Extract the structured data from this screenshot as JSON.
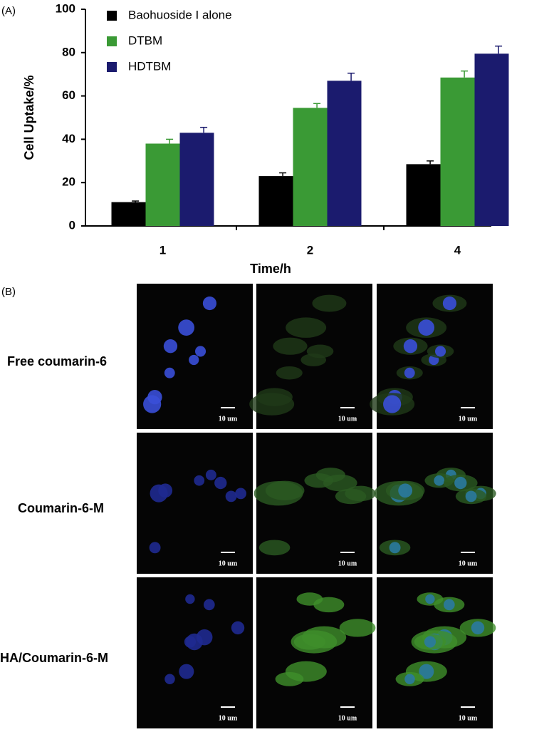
{
  "chart_data": {
    "type": "bar",
    "panel_label": "(A)",
    "x_label": "Time/h",
    "y_label": "Cell Uptake/%",
    "categories": [
      "1",
      "2",
      "4"
    ],
    "series": [
      {
        "name": "Baohuoside I alone",
        "color": "#000000",
        "values": [
          11,
          23,
          28.5
        ],
        "errors": [
          0.5,
          1.5,
          1.5
        ]
      },
      {
        "name": "DTBM",
        "color": "#3a9a35",
        "values": [
          38,
          54.5,
          68.5
        ],
        "errors": [
          2,
          2,
          3
        ]
      },
      {
        "name": "HDTBM",
        "color": "#1b1b6e",
        "values": [
          43,
          67,
          79.5
        ],
        "errors": [
          2.5,
          3.5,
          3.5
        ]
      }
    ],
    "ylim": [
      0,
      100
    ],
    "yticks": [
      0,
      20,
      40,
      60,
      80,
      100
    ],
    "grid": false
  },
  "panel_b": {
    "label": "(B)",
    "rows": [
      "Free coumarin-6",
      "Coumarin-6-M",
      "HA/Coumarin-6-M"
    ],
    "scale_bar": "10 um"
  }
}
